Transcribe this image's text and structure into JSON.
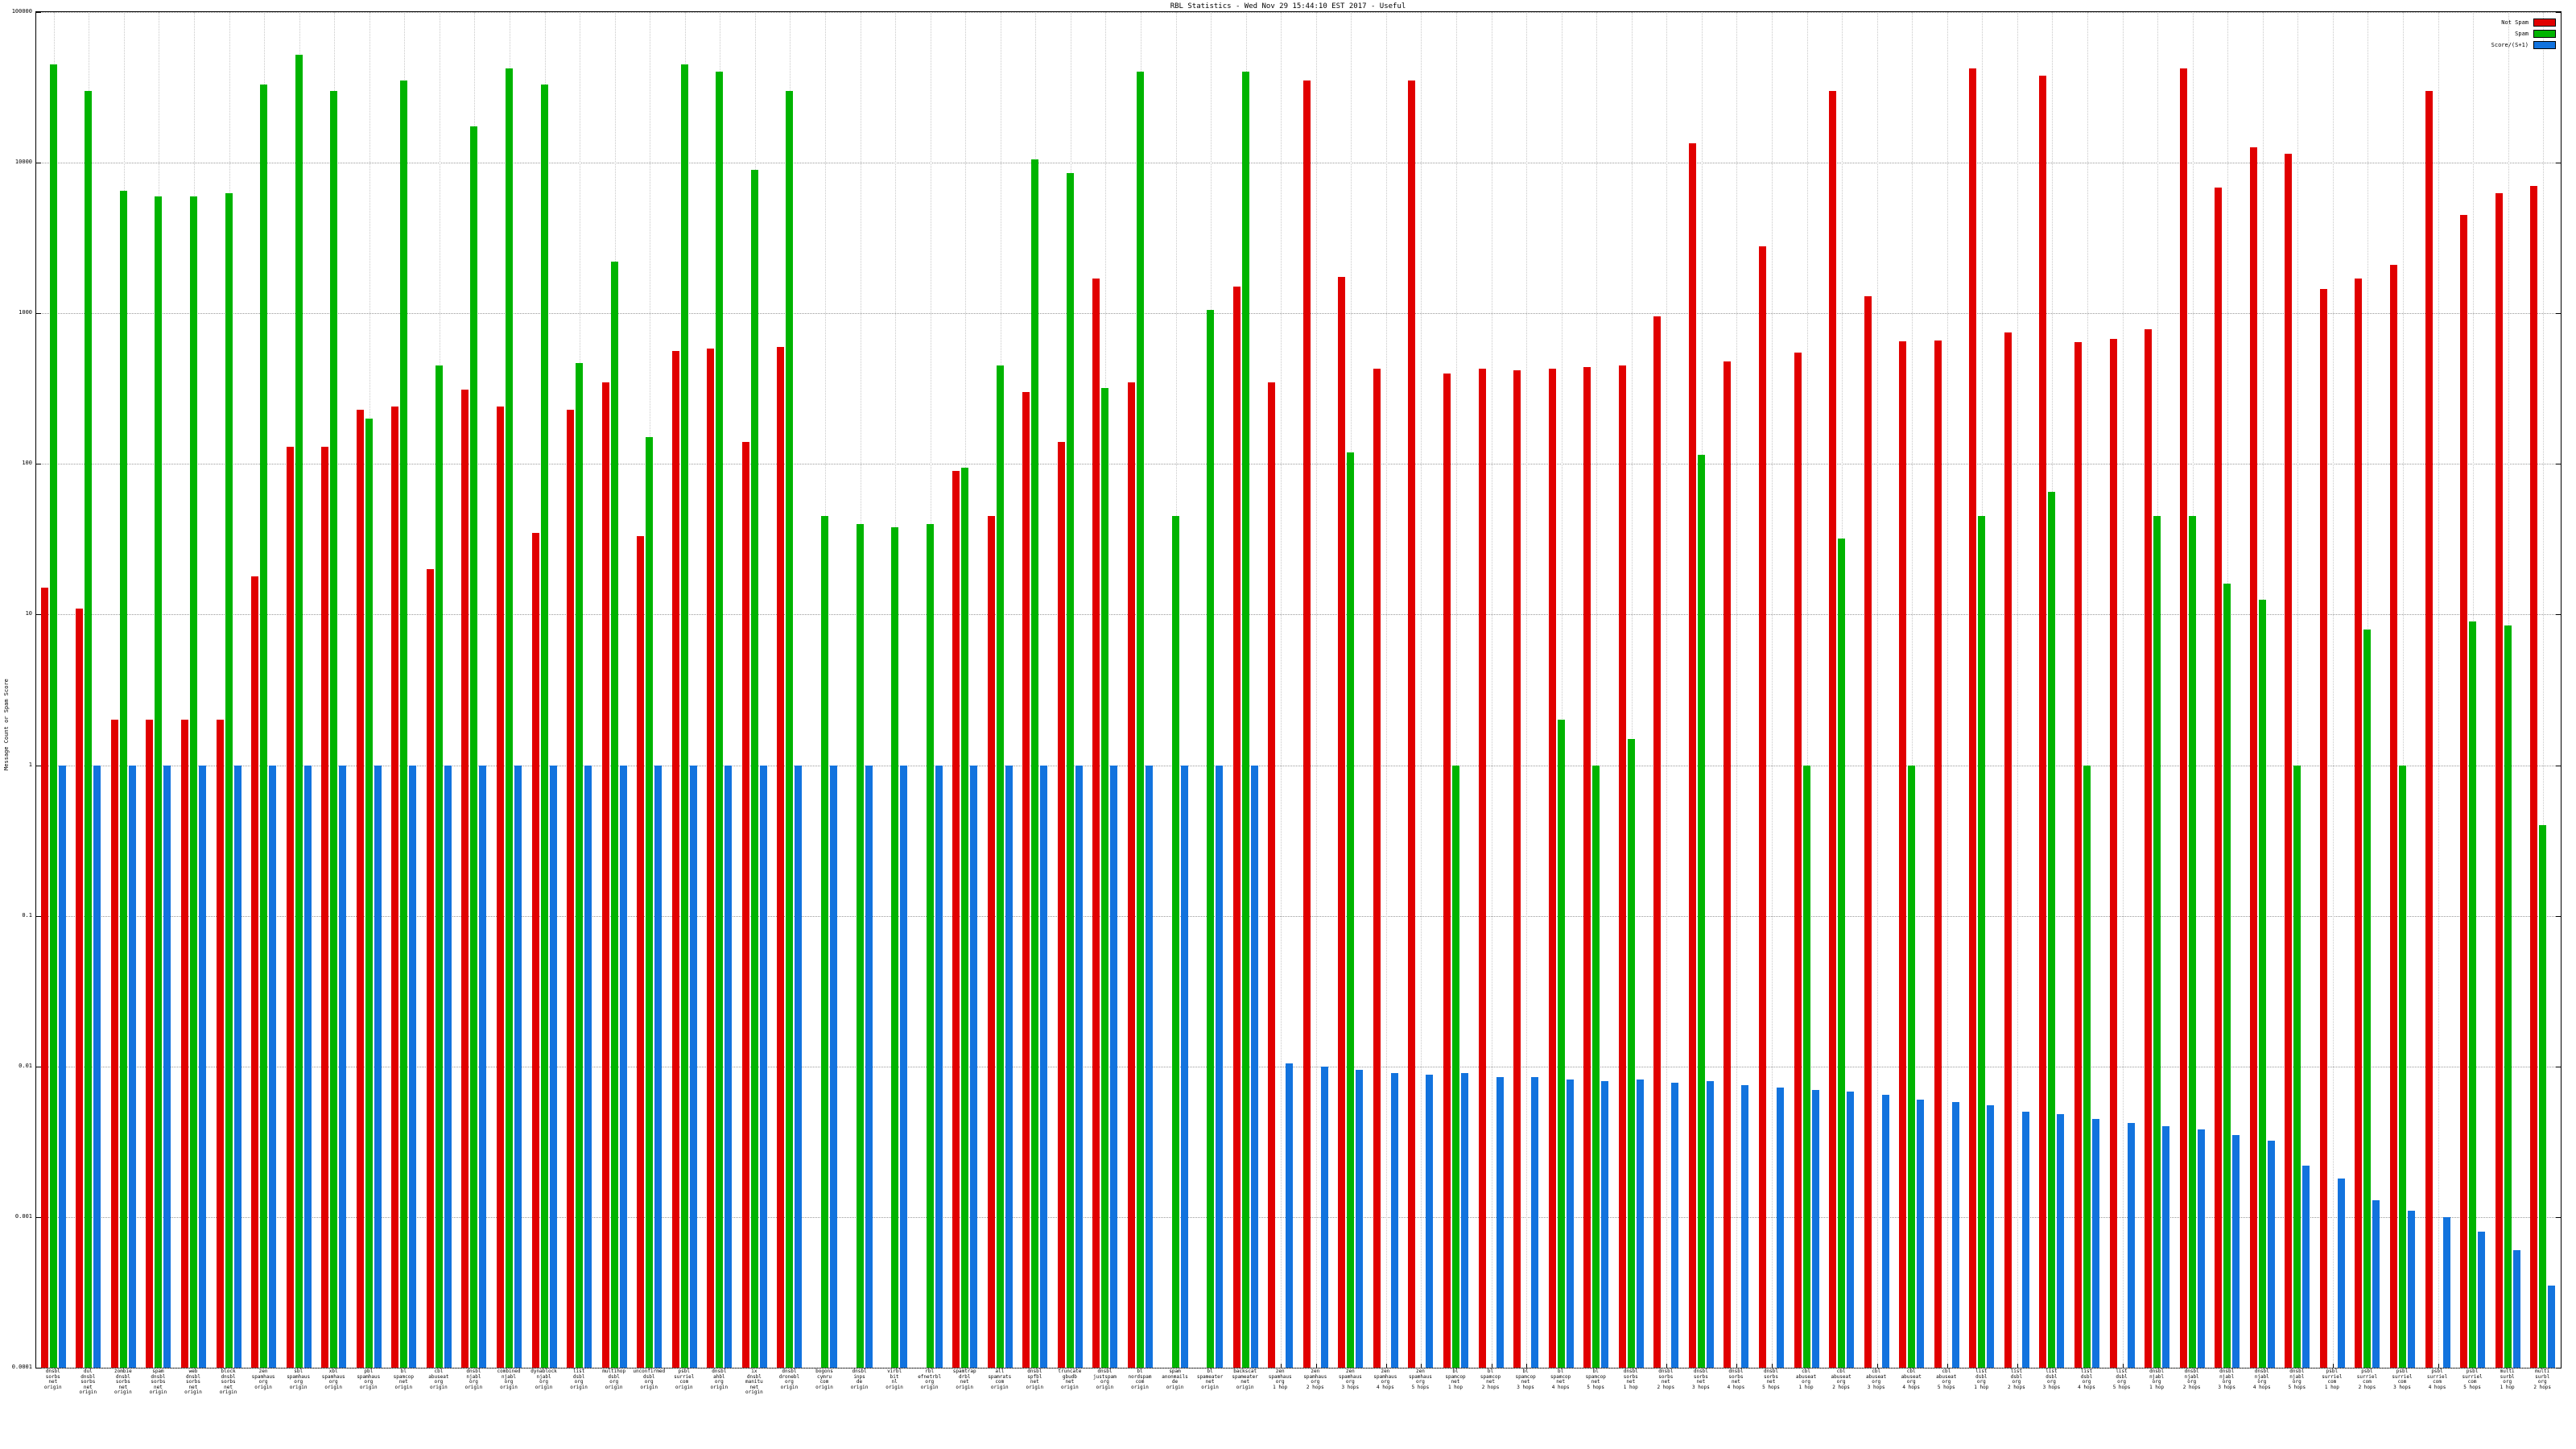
{
  "page": {
    "title": "RBL Statistics - Wed Nov 29 15:44:10 EST 2017 - Useful"
  },
  "chart_data": {
    "type": "bar",
    "title": "RBL Statistics - Wed Nov 29 15:44:10 EST 2017 - Useful",
    "ylabel": "Message Count or Spam Score",
    "xlabel": "",
    "y_scale": "log",
    "ylim": [
      0.0001,
      100000
    ],
    "yticks": [
      100000,
      10000,
      1000,
      100,
      10,
      1,
      0.1,
      0.01,
      0.001,
      0.0001
    ],
    "ytick_labels": [
      "100000",
      "10000",
      "1000",
      "100",
      "10",
      "1",
      "0.1",
      "0.01",
      "0.001",
      "0.0001"
    ],
    "grid": true,
    "legend_position": "top-right",
    "categories": [
      "dnsbl|sorbs|net|origin",
      "dul|dnsbl|sorbs|net|origin",
      "zombie|dnsbl|sorbs|net|origin",
      "spam|dnsbl|sorbs|net|origin",
      "web|dnsbl|sorbs|net|origin",
      "block|dnsbl|sorbs|net|origin",
      "zen|spamhaus|org|origin",
      "sbl|spamhaus|org|origin",
      "xbl|spamhaus|org|origin",
      "pbl|spamhaus|org|origin",
      "bl|spamcop|net|origin",
      "cbl|abuseat|org|origin",
      "dnsbl|njabl|org|origin",
      "combined|njabl|org|origin",
      "dynablock|njabl|org|origin",
      "list|dsbl|org|origin",
      "multihop|dsbl|org|origin",
      "unconfirmed|dsbl|org|origin",
      "psbl|surriel|com|origin",
      "dnsbl|ahbl|org|origin",
      "ix|dnsbl|manitu|net|origin",
      "dnsbl|dronebl|org|origin",
      "bogons|cymru|com|origin",
      "dnsbl|inps|de|origin",
      "virbl|bit|nl|origin",
      "rbl|efnetrbl|org|origin",
      "spamtrap|drbl|net|origin",
      "all|spamrats|com|origin",
      "dnsbl|spfbl|net|origin",
      "truncate|gbudb|net|origin",
      "dnsbl|justspam|org|origin",
      "bl|nordspam|com|origin",
      "spam|anonmails|de|origin",
      "bl|spameater|net|origin",
      "backscat|spameater|net|origin",
      "zen|spamhaus|org|1 hop",
      "zen|spamhaus|org|2 hops",
      "zen|spamhaus|org|3 hops",
      "zen|spamhaus|org|4 hops",
      "zen|spamhaus|org|5 hops",
      "bl|spamcop|net|1 hop",
      "bl|spamcop|net|2 hops",
      "bl|spamcop|net|3 hops",
      "bl|spamcop|net|4 hops",
      "bl|spamcop|net|5 hops",
      "dnsbl|sorbs|net|1 hop",
      "dnsbl|sorbs|net|2 hops",
      "dnsbl|sorbs|net|3 hops",
      "dnsbl|sorbs|net|4 hops",
      "dnsbl|sorbs|net|5 hops",
      "cbl|abuseat|org|1 hop",
      "cbl|abuseat|org|2 hops",
      "cbl|abuseat|org|3 hops",
      "cbl|abuseat|org|4 hops",
      "cbl|abuseat|org|5 hops",
      "list|dsbl|org|1 hop",
      "list|dsbl|org|2 hops",
      "list|dsbl|org|3 hops",
      "list|dsbl|org|4 hops",
      "list|dsbl|org|5 hops",
      "dnsbl|njabl|org|1 hop",
      "dnsbl|njabl|org|2 hops",
      "dnsbl|njabl|org|3 hops",
      "dnsbl|njabl|org|4 hops",
      "dnsbl|njabl|org|5 hops",
      "psbl|surriel|com|1 hop",
      "psbl|surriel|com|2 hops",
      "psbl|surriel|com|3 hops",
      "psbl|surriel|com|4 hops",
      "psbl|surriel|com|5 hops",
      "multi|surbl|org|1 hop",
      "multi|surbl|org|2 hops"
    ],
    "series": [
      {
        "name": "Not Spam",
        "color": "#e10000",
        "values": [
          15,
          11,
          2,
          2,
          2,
          2,
          18,
          130,
          130,
          230,
          240,
          20,
          310,
          240,
          35,
          230,
          350,
          33,
          560,
          580,
          140,
          600,
          null,
          null,
          null,
          null,
          90,
          45,
          300,
          140,
          1700,
          350,
          null,
          null,
          1500,
          350,
          35000,
          1750,
          430,
          35000,
          400,
          430,
          420,
          430,
          440,
          450,
          950,
          13500,
          480,
          2800,
          550,
          30000,
          1300,
          650,
          660,
          42000,
          750,
          38000,
          640,
          680,
          780,
          42000,
          6800,
          12600,
          11500,
          1450,
          1700,
          2100,
          30000,
          4500,
          6300,
          7000
        ]
      },
      {
        "name": "Spam",
        "color": "#00b400",
        "values": [
          45000,
          30000,
          6500,
          6000,
          6000,
          6300,
          33000,
          52000,
          30000,
          200,
          35000,
          450,
          17500,
          42000,
          33000,
          470,
          2200,
          150,
          45000,
          40000,
          9000,
          30000,
          45,
          40,
          38,
          40,
          95,
          450,
          10500,
          8500,
          320,
          40000,
          45,
          1050,
          40000,
          null,
          null,
          120,
          null,
          null,
          1,
          null,
          null,
          2,
          1,
          1.5,
          null,
          115,
          null,
          null,
          1,
          32,
          null,
          1,
          null,
          45,
          null,
          65,
          1,
          null,
          45,
          45,
          16,
          12.5,
          1,
          null,
          8,
          1,
          null,
          9,
          8.5,
          0.4
        ]
      },
      {
        "name": "Score/(S+1)",
        "color": "#1273de",
        "values": [
          1,
          1,
          1,
          1,
          1,
          1,
          1,
          1,
          1,
          1,
          1,
          1,
          1,
          1,
          1,
          1,
          1,
          1,
          1,
          1,
          1,
          1,
          1,
          1,
          1,
          1,
          1,
          1,
          1,
          1,
          1,
          1,
          1,
          1,
          1,
          0.0105,
          0.01,
          0.0095,
          0.009,
          0.0088,
          0.009,
          0.0085,
          0.0085,
          0.0082,
          0.008,
          0.0082,
          0.0078,
          0.008,
          0.0075,
          0.0072,
          0.007,
          0.0068,
          0.0065,
          0.006,
          0.0058,
          0.0055,
          0.005,
          0.0048,
          0.0045,
          0.0042,
          0.004,
          0.0038,
          0.0035,
          0.0032,
          0.0022,
          0.0018,
          0.0013,
          0.0011,
          0.001,
          0.0008,
          0.0006,
          0.00035
        ]
      }
    ]
  }
}
